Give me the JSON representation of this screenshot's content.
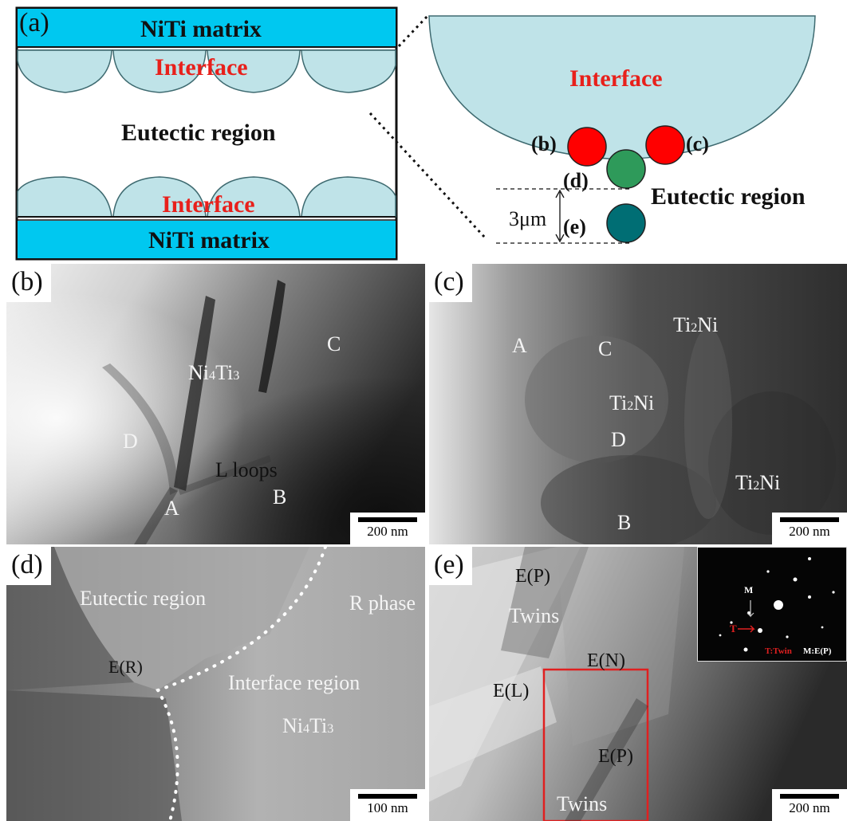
{
  "panel_a": {
    "label": "(a)",
    "niti_top": "NiTi matrix",
    "niti_bottom": "NiTi matrix",
    "interface_top": "Interface",
    "interface_bottom": "Interface",
    "eutectic": "Eutectic region",
    "zoom_interface": "Interface",
    "zoom_eutectic": "Eutectic region",
    "mark_b": "(b)",
    "mark_c": "(c)",
    "mark_d": "(d)",
    "mark_e": "(e)",
    "distance": "3μm",
    "colors": {
      "matrix": "#00c8f0",
      "interface": "#bfe3e8",
      "interface_text": "#e8201b",
      "spot_red": "#ff0000",
      "spot_green": "#2e9a5a",
      "spot_teal": "#006e74"
    }
  },
  "panel_b": {
    "label": "(b)",
    "ni4ti3_main": "Ni",
    "ni4ti3_sub1": "4",
    "ni4ti3_mid": "Ti",
    "ni4ti3_sub2": "3",
    "marker_c": "C",
    "marker_d": "D",
    "marker_a": "A",
    "marker_b": "B",
    "loops": "L loops",
    "scale": "200 nm"
  },
  "panel_c": {
    "label": "(c)",
    "ti2ni_base": "Ti",
    "ti2ni_sub": "2",
    "ti2ni_end": "Ni",
    "marker_a": "A",
    "marker_c": "C",
    "marker_d": "D",
    "marker_b": "B",
    "scale": "200 nm"
  },
  "panel_d": {
    "label": "(d)",
    "eutectic": "Eutectic region",
    "r_phase": "R phase",
    "er": "E(R)",
    "interface_region": "Interface region",
    "ni4ti3_main": "Ni",
    "ni4ti3_sub1": "4",
    "ni4ti3_mid": "Ti",
    "ni4ti3_sub2": "3",
    "scale": "100 nm"
  },
  "panel_e": {
    "label": "(e)",
    "ep_top": "E(P)",
    "twins_top": "Twins",
    "en": "E(N)",
    "el": "E(L)",
    "ep_box": "E(P)",
    "twins_box": "Twins",
    "inset_m": "M",
    "inset_t": "T",
    "inset_legend_t": "T:Twin",
    "inset_legend_m": "M:E(P)",
    "scale": "200 nm",
    "colors": {
      "box": "#e02020"
    }
  }
}
